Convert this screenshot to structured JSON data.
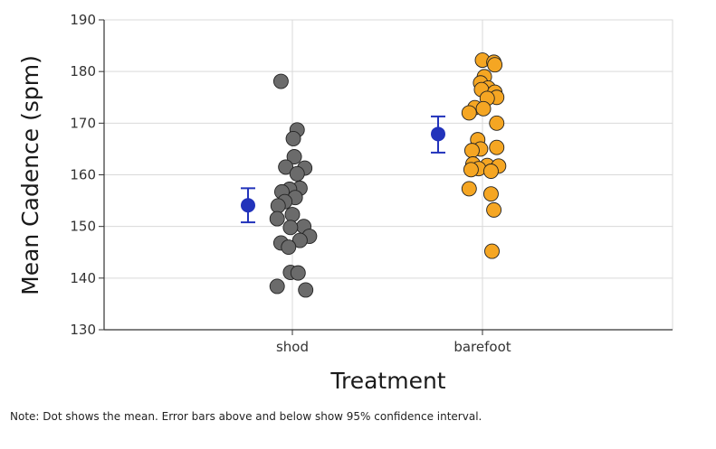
{
  "chart_data": {
    "type": "scatter",
    "xlabel": "Treatment",
    "ylabel": "Mean Cadence (spm)",
    "note": "Note: Dot shows the mean. Error bars above and below show 95% confidence interval.",
    "ylim": [
      130,
      190
    ],
    "yticks": [
      130,
      140,
      150,
      160,
      170,
      180,
      190
    ],
    "categories": [
      "shod",
      "barefoot"
    ],
    "grid": true,
    "series": [
      {
        "category": "shod",
        "color": "#6b6b6b",
        "points": [
          {
            "j": -0.12,
            "y": 178.1
          },
          {
            "j": 0.05,
            "y": 168.7
          },
          {
            "j": 0.01,
            "y": 167.0
          },
          {
            "j": 0.02,
            "y": 163.5
          },
          {
            "j": -0.07,
            "y": 161.5
          },
          {
            "j": 0.13,
            "y": 161.3
          },
          {
            "j": 0.05,
            "y": 160.2
          },
          {
            "j": 0.08,
            "y": 157.4
          },
          {
            "j": -0.03,
            "y": 157.2
          },
          {
            "j": -0.11,
            "y": 156.7
          },
          {
            "j": 0.03,
            "y": 155.6
          },
          {
            "j": -0.08,
            "y": 154.8
          },
          {
            "j": -0.15,
            "y": 154.0
          },
          {
            "j": 0.0,
            "y": 152.3
          },
          {
            "j": -0.16,
            "y": 151.5
          },
          {
            "j": 0.12,
            "y": 150.0
          },
          {
            "j": -0.02,
            "y": 149.8
          },
          {
            "j": 0.18,
            "y": 148.1
          },
          {
            "j": 0.08,
            "y": 147.3
          },
          {
            "j": -0.12,
            "y": 146.8
          },
          {
            "j": -0.04,
            "y": 146.0
          },
          {
            "j": -0.02,
            "y": 141.1
          },
          {
            "j": 0.06,
            "y": 141.0
          },
          {
            "j": -0.16,
            "y": 138.4
          },
          {
            "j": 0.14,
            "y": 137.7
          }
        ],
        "mean": 154.1,
        "ci": [
          150.8,
          157.4
        ]
      },
      {
        "category": "barefoot",
        "color": "#f5a623",
        "points": [
          {
            "j": 0.0,
            "y": 182.2
          },
          {
            "j": 0.12,
            "y": 181.8
          },
          {
            "j": 0.13,
            "y": 181.3
          },
          {
            "j": 0.02,
            "y": 179.0
          },
          {
            "j": -0.02,
            "y": 177.8
          },
          {
            "j": 0.06,
            "y": 176.8
          },
          {
            "j": -0.01,
            "y": 176.5
          },
          {
            "j": 0.13,
            "y": 176.0
          },
          {
            "j": 0.15,
            "y": 175.0
          },
          {
            "j": 0.05,
            "y": 174.8
          },
          {
            "j": -0.08,
            "y": 173.0
          },
          {
            "j": 0.01,
            "y": 172.8
          },
          {
            "j": -0.14,
            "y": 172.0
          },
          {
            "j": 0.15,
            "y": 170.0
          },
          {
            "j": -0.05,
            "y": 166.8
          },
          {
            "j": 0.15,
            "y": 165.3
          },
          {
            "j": -0.02,
            "y": 165.0
          },
          {
            "j": -0.11,
            "y": 164.7
          },
          {
            "j": -0.1,
            "y": 162.1
          },
          {
            "j": 0.05,
            "y": 161.8
          },
          {
            "j": 0.17,
            "y": 161.7
          },
          {
            "j": -0.04,
            "y": 161.2
          },
          {
            "j": -0.12,
            "y": 161.0
          },
          {
            "j": 0.09,
            "y": 160.7
          },
          {
            "j": -0.14,
            "y": 157.3
          },
          {
            "j": 0.09,
            "y": 156.3
          },
          {
            "j": 0.12,
            "y": 153.2
          },
          {
            "j": 0.1,
            "y": 145.2
          }
        ],
        "mean": 167.9,
        "ci": [
          164.3,
          171.3
        ]
      }
    ],
    "mean_marker_color": "#2233bb"
  }
}
